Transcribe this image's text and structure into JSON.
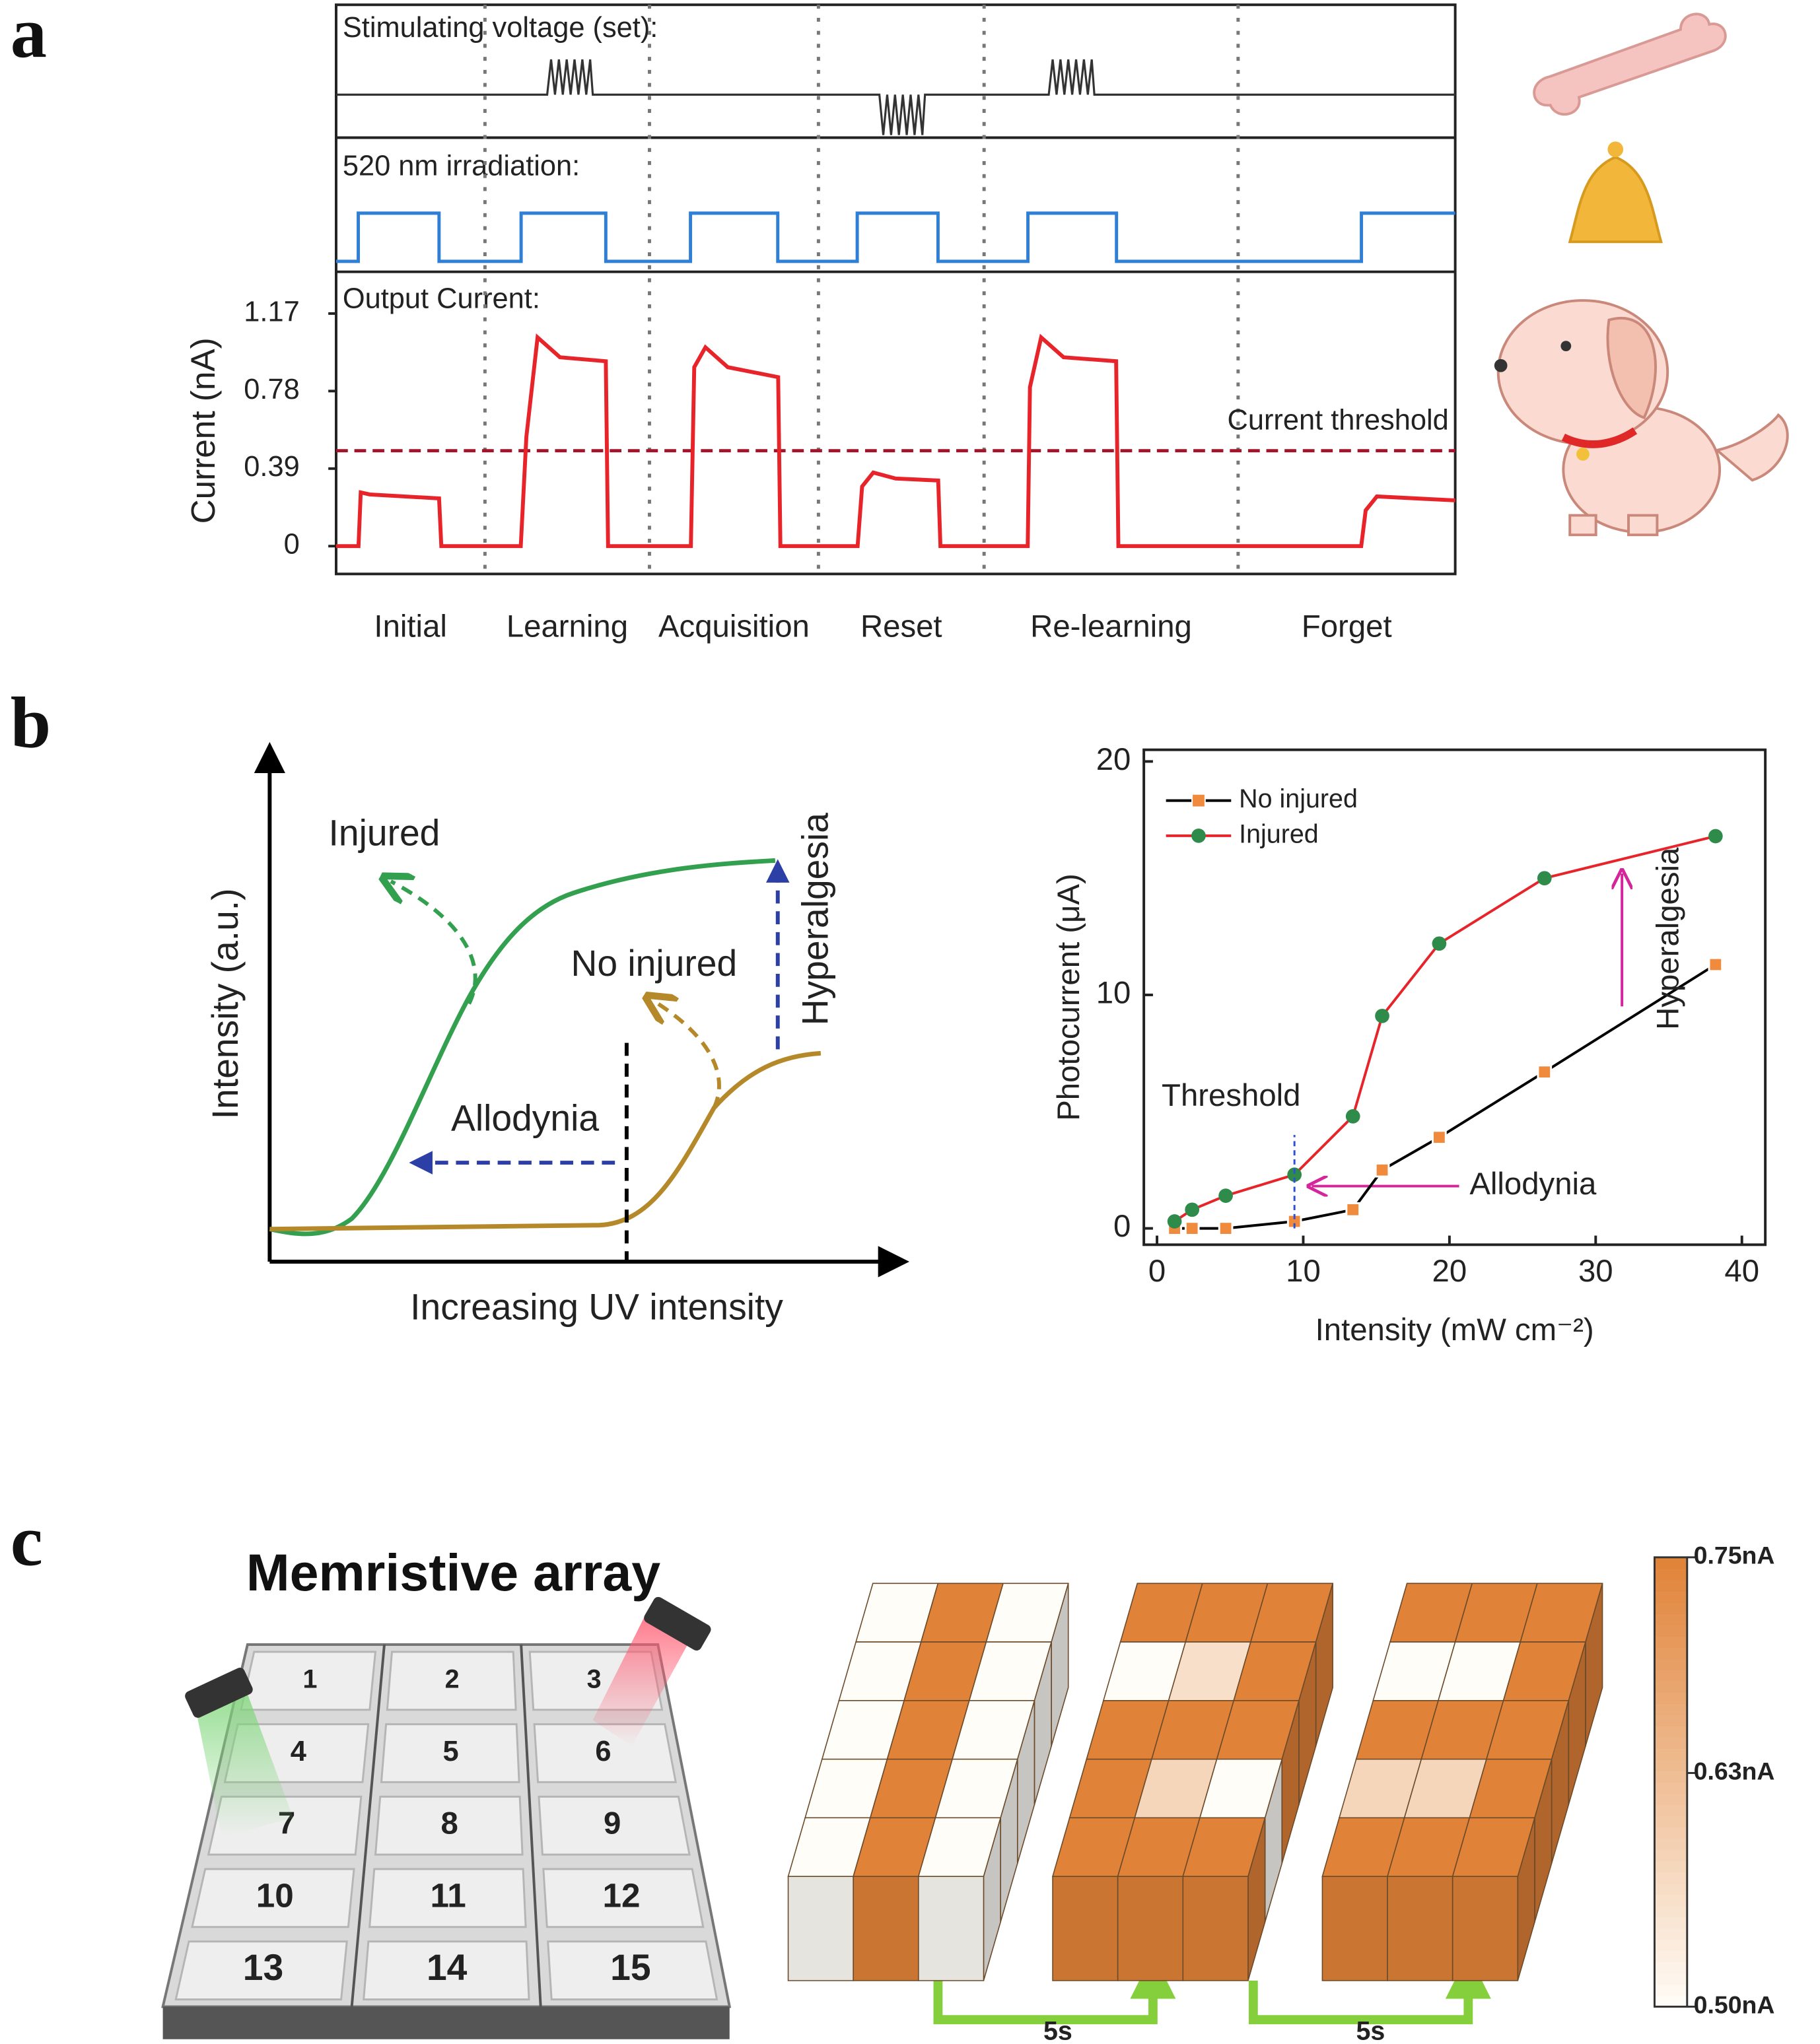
{
  "panel_labels": [
    "a",
    "b",
    "c"
  ],
  "chart_data": [
    {
      "type": "line",
      "ylabel": "Current (nA)",
      "subtitles": [
        "Stimulating voltage (set):",
        "520 nm irradiation:",
        "Output Current:"
      ],
      "categories": [
        "Initial",
        "Learning",
        "Acquisition",
        "Reset",
        "Re-learning",
        "Forget"
      ],
      "phase_boundaries": [
        13.3,
        28,
        43.1,
        57.9,
        80.6
      ],
      "x": [
        0,
        2,
        2.2,
        3,
        9.2,
        9.4,
        16.5,
        17,
        18,
        20,
        24.1,
        24.3,
        31.7,
        32,
        33,
        35,
        39.5,
        39.7,
        46.6,
        47,
        48,
        50,
        53.8,
        54,
        61.8,
        62,
        63,
        65,
        69.7,
        69.9,
        91.6,
        92,
        93,
        100
      ],
      "values": [
        0,
        0,
        0.27,
        0.26,
        0.24,
        0,
        0,
        0.55,
        1.05,
        0.95,
        0.93,
        0,
        0,
        0.9,
        1.0,
        0.9,
        0.85,
        0,
        0,
        0.3,
        0.37,
        0.34,
        0.33,
        0,
        0,
        0.8,
        1.05,
        0.95,
        0.93,
        0,
        0,
        0.18,
        0.25,
        0.23
      ],
      "color": "#e8242b",
      "xlim": [
        0,
        100
      ],
      "ylim": [
        -0.14,
        1.38
      ],
      "yticks": [
        0,
        0.39,
        0.78,
        1.17
      ],
      "threshold": 0.48,
      "threshold_label": "Current threshold"
    },
    {
      "type": "line",
      "xlabel": "Intensity (mW cm⁻²)",
      "ylabel": "Photocurrent (μA)",
      "x": [
        1.2,
        2.4,
        4.7,
        9.4,
        13.4,
        15.4,
        19.3,
        26.5,
        38.2
      ],
      "series": [
        {
          "name": "No injured",
          "color": "#000000",
          "marker": "square",
          "marker_color": "#f08a3c",
          "values": [
            0,
            0,
            0,
            0.3,
            0.8,
            2.5,
            3.9,
            6.7,
            11.3
          ]
        },
        {
          "name": "Injured",
          "color": "#e8242b",
          "marker": "circle",
          "marker_color": "#2e8b4a",
          "values": [
            0.3,
            0.8,
            1.4,
            2.3,
            4.8,
            9.1,
            12.2,
            15,
            16.8
          ]
        }
      ],
      "xlim": [
        -0.9,
        41.6
      ],
      "ylim": [
        -0.7,
        20.5
      ],
      "xticks": [
        0,
        10,
        20,
        30,
        40
      ],
      "yticks": [
        0,
        10,
        20
      ],
      "threshold": 9.4,
      "threshold_label": "Threshold",
      "annotations": [
        "Allodynia",
        "Hyperalgesia"
      ],
      "legend": "upper left"
    }
  ],
  "schematic": {
    "ylabel": "Intensity (a.u.)",
    "xlabel": "Increasing UV intensity",
    "labels": [
      "Injured",
      "No injured",
      "Allodynia",
      "Hyperalgesia"
    ]
  },
  "array": {
    "title": "Memristive array",
    "cells": [
      "1",
      "2",
      "3",
      "4",
      "5",
      "6",
      "7",
      "8",
      "9",
      "10",
      "11",
      "12",
      "13",
      "14",
      "15"
    ]
  },
  "heatmap": {
    "frames": [
      [
        [
          0.5,
          0.75,
          0.5
        ],
        [
          0.5,
          0.75,
          0.5
        ],
        [
          0.5,
          0.75,
          0.5
        ],
        [
          0.5,
          0.75,
          0.5
        ],
        [
          0.5,
          0.75,
          0.5
        ]
      ],
      [
        [
          0.75,
          0.75,
          0.75
        ],
        [
          0.5,
          0.56,
          0.75
        ],
        [
          0.75,
          0.75,
          0.75
        ],
        [
          0.75,
          0.58,
          0.5
        ],
        [
          0.75,
          0.75,
          0.75
        ]
      ],
      [
        [
          0.75,
          0.75,
          0.75
        ],
        [
          0.5,
          0.5,
          0.75
        ],
        [
          0.75,
          0.75,
          0.75
        ],
        [
          0.58,
          0.58,
          0.75
        ],
        [
          0.75,
          0.75,
          0.75
        ]
      ]
    ],
    "clim": [
      0.5,
      0.75
    ],
    "ticks": [
      {
        "value": 0.75,
        "label": "0.75nA"
      },
      {
        "value": 0.63,
        "label": "0.63nA"
      },
      {
        "value": 0.5,
        "label": "0.50nA"
      }
    ],
    "interval_labels": [
      "5s",
      "5s"
    ]
  }
}
